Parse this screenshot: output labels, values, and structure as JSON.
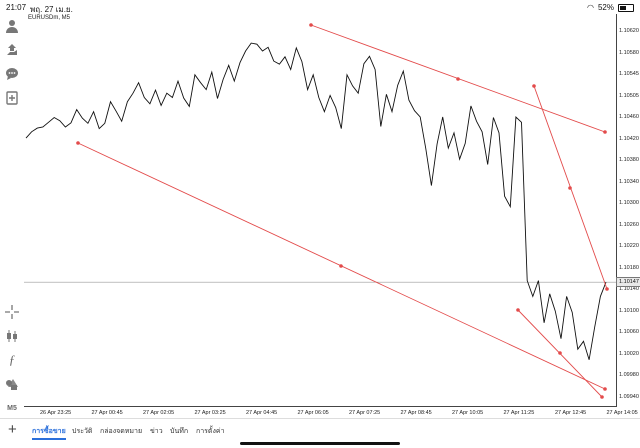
{
  "status": {
    "time": "21:07",
    "date": "พฤ. 27 เม.ย.",
    "battery": "52%"
  },
  "chart": {
    "symbol": "EURUSDm, M5",
    "current_price": "1.10147",
    "y_ticks": [
      "1.10620",
      "1.10580",
      "1.10545",
      "1.10505",
      "1.10460",
      "1.10420",
      "1.10380",
      "1.10340",
      "1.10300",
      "1.10260",
      "1.10220",
      "1.10180",
      "1.10140",
      "1.10100",
      "1.10060",
      "1.10020",
      "1.09980",
      "1.09940"
    ],
    "x_ticks": [
      "26 Apr 23:25",
      "27 Apr 00:45",
      "27 Apr 02:05",
      "27 Apr 03:25",
      "27 Apr 04:45",
      "27 Apr 06:05",
      "27 Apr 07:25",
      "27 Apr 08:45",
      "27 Apr 10:05",
      "27 Apr 11:25",
      "27 Apr 12:45",
      "27 Apr 14:05"
    ],
    "line_color": "#111111",
    "trendline_color": "#e34b4b",
    "price_series": [
      1.1042,
      1.10432,
      1.10439,
      1.10441,
      1.1045,
      1.10459,
      1.10453,
      1.10441,
      1.10449,
      1.10474,
      1.10458,
      1.10448,
      1.1047,
      1.10438,
      1.10448,
      1.10489,
      1.10471,
      1.10452,
      1.10489,
      1.10505,
      1.10525,
      1.10497,
      1.10485,
      1.10511,
      1.10482,
      1.10505,
      1.10497,
      1.10528,
      1.10496,
      1.1048,
      1.1054,
      1.10525,
      1.10512,
      1.10545,
      1.10495,
      1.10531,
      1.10558,
      1.10528,
      1.10563,
      1.10585,
      1.106,
      1.10598,
      1.10585,
      1.10592,
      1.10566,
      1.1056,
      1.10574,
      1.1055,
      1.10591,
      1.10565,
      1.10512,
      1.1054,
      1.10497,
      1.1047,
      1.10501,
      1.10478,
      1.10438,
      1.1054,
      1.10519,
      1.10505,
      1.10561,
      1.10575,
      1.1055,
      1.10442,
      1.10503,
      1.1047,
      1.1052,
      1.10547,
      1.10492,
      1.10472,
      1.1046,
      1.104,
      1.1033,
      1.10409,
      1.1046,
      1.10401,
      1.1043,
      1.1038,
      1.1041,
      1.10481,
      1.10452,
      1.10432,
      1.1037,
      1.10459,
      1.1043,
      1.1031,
      1.1029,
      1.1046,
      1.1045,
      1.1015,
      1.1012,
      1.1015,
      1.1007,
      1.10125,
      1.10092,
      1.1004,
      1.1012,
      1.1009,
      1.1002,
      1.10035,
      1.1,
      1.10062,
      1.1012,
      1.10147
    ]
  },
  "toolbar": {
    "icons": [
      "user-icon",
      "share-icon",
      "chat-icon",
      "add-file-icon",
      "crosshair-icon",
      "candles-icon",
      "function-icon",
      "objects-icon",
      "period-icon"
    ],
    "period_label": "M5"
  },
  "tabs": [
    "การซื้อขาย",
    "ประวัติ",
    "กล่องจดหมาย",
    "ข่าว",
    "บันทึก",
    "การตั้งค่า"
  ]
}
